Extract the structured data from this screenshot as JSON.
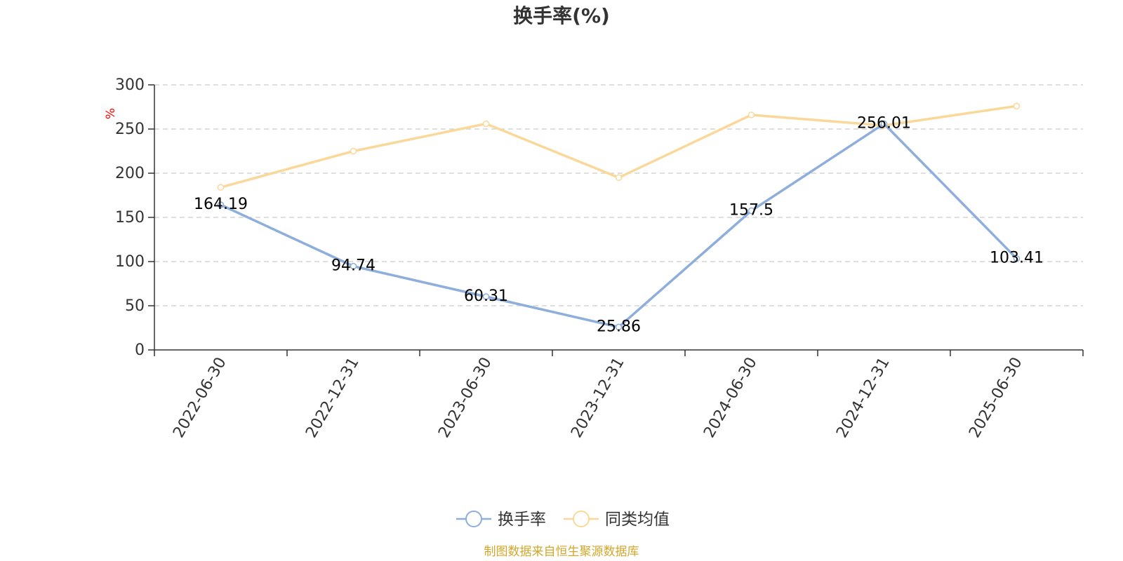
{
  "chart_data": {
    "type": "line",
    "title": "换手率(%)",
    "ylabel": "%",
    "x": [
      "2022-06-30",
      "2022-12-31",
      "2023-06-30",
      "2023-12-31",
      "2024-06-30",
      "2024-12-31",
      "2025-06-30"
    ],
    "ylim": [
      0,
      300
    ],
    "yticks": [
      0,
      50,
      100,
      150,
      200,
      250,
      300
    ],
    "grid": true,
    "legend_position": "bottom-center",
    "series": [
      {
        "name": "换手率",
        "values": [
          164.19,
          94.74,
          60.31,
          25.86,
          157.5,
          256.01,
          103.41
        ],
        "data_labels": [
          "164.19",
          "94.74",
          "60.31",
          "25.86",
          "157.5",
          "256.01",
          "103.41"
        ],
        "color": "#8eaedb"
      },
      {
        "name": "同类均值",
        "values": [
          184,
          225,
          256,
          195,
          266,
          254,
          276
        ],
        "color": "#fad89a"
      }
    ],
    "source_note": "制图数据来自恒生聚源数据库",
    "colors": {
      "axis": "#333333",
      "grid": "#cccccc",
      "unit": "#ff0000",
      "source": "#d4a62a"
    }
  }
}
